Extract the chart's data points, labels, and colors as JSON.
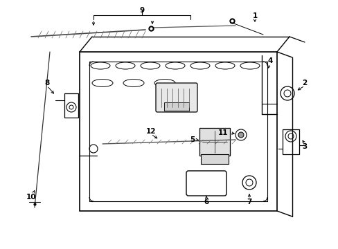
{
  "bg_color": "#ffffff",
  "line_color": "#000000",
  "fig_width": 4.89,
  "fig_height": 3.6,
  "dpi": 100,
  "gray": "#888888",
  "lgray": "#cccccc"
}
